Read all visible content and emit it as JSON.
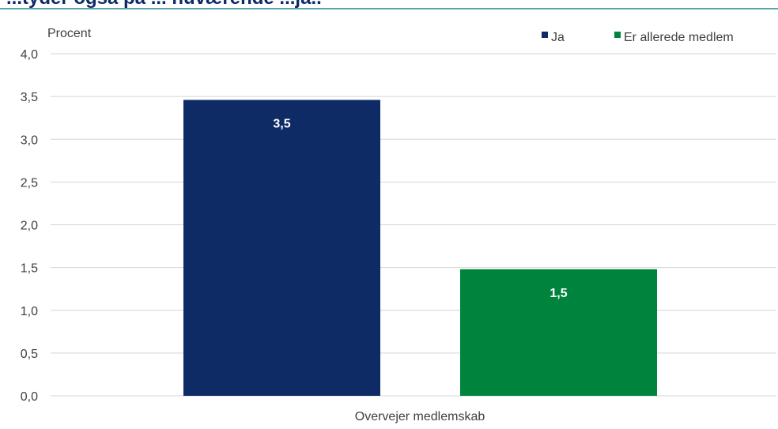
{
  "chart_data": {
    "type": "bar",
    "title": "...tyder også på ... nuværende ...ja..",
    "ylabel": "Procent",
    "xlabel": "",
    "categories": [
      "Overvejer medlemskab"
    ],
    "series": [
      {
        "name": "Ja",
        "values": [
          3.46
        ],
        "label": "3,5",
        "color": "#0f2b66"
      },
      {
        "name": "Er allerede medlem",
        "values": [
          1.48
        ],
        "label": "1,5",
        "color": "#00843d"
      }
    ],
    "ylim": [
      0,
      4
    ],
    "yticks": [
      "0,0",
      "0,5",
      "1,0",
      "1,5",
      "2,0",
      "2,5",
      "3,0",
      "3,5",
      "4,0"
    ],
    "grid": true,
    "legend_position": "top-right"
  }
}
